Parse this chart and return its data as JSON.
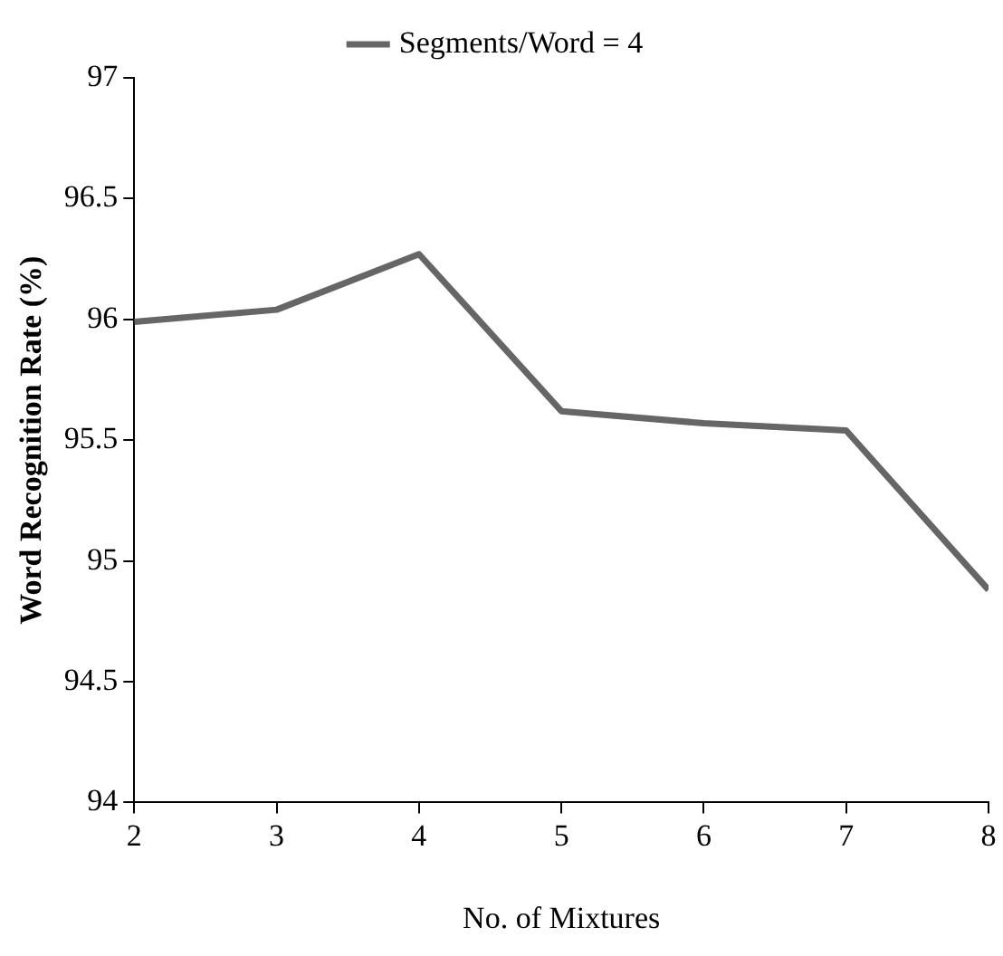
{
  "chart_data": {
    "type": "line",
    "xlabel": "No. of Mixtures",
    "ylabel": "Word Recognition Rate (%)",
    "x": [
      2,
      3,
      4,
      5,
      6,
      7,
      8
    ],
    "series": [
      {
        "name": "Segments/Word = 4",
        "color": "#666666",
        "values": [
          95.99,
          96.04,
          96.27,
          95.62,
          95.57,
          95.54,
          94.88
        ]
      }
    ],
    "xlim": [
      2,
      8
    ],
    "xticks": [
      2,
      3,
      4,
      5,
      6,
      7,
      8
    ],
    "ylim": [
      94,
      97
    ],
    "yticks": [
      94,
      94.5,
      95,
      95.5,
      96,
      96.5,
      97
    ],
    "grid": false,
    "legend": "top",
    "marker": "none",
    "line_style": "solid"
  }
}
